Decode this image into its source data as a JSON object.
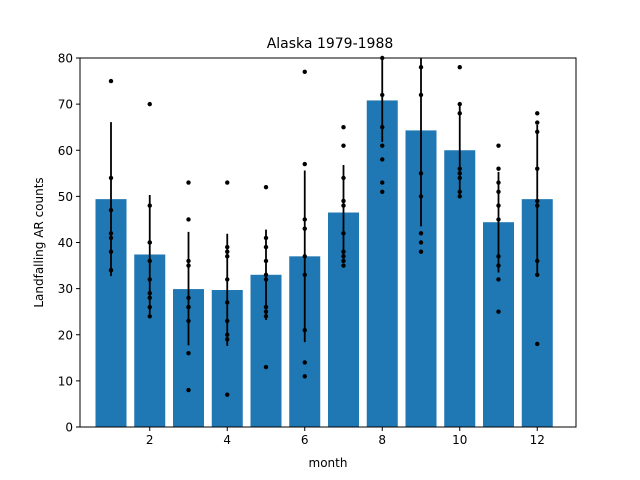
{
  "chart_data": {
    "type": "bar",
    "title": "Alaska 1979-1988",
    "xlabel": "month",
    "ylabel": "Landfalling AR counts",
    "xlim": [
      0.2,
      13.0
    ],
    "ylim": [
      0,
      80
    ],
    "xticks": [
      2,
      4,
      6,
      8,
      10,
      12
    ],
    "yticks": [
      0,
      10,
      20,
      30,
      40,
      50,
      60,
      70,
      80
    ],
    "bar_color": "#1f77b4",
    "categories": [
      1,
      2,
      3,
      4,
      5,
      6,
      7,
      8,
      9,
      10,
      11,
      12
    ],
    "values": [
      49.4,
      37.4,
      29.9,
      29.7,
      33.0,
      37.0,
      46.5,
      70.8,
      64.3,
      60.0,
      44.4,
      49.4
    ],
    "error": [
      [
        32.7,
        66.1
      ],
      [
        24.5,
        50.3
      ],
      [
        17.7,
        42.3
      ],
      [
        17.6,
        41.9
      ],
      [
        23.2,
        42.8
      ],
      [
        18.4,
        55.6
      ],
      [
        36.2,
        56.8
      ],
      [
        61.8,
        79.8
      ],
      [
        43.5,
        85.0
      ],
      [
        50.1,
        69.9
      ],
      [
        33.5,
        55.3
      ],
      [
        33.3,
        65.5
      ]
    ],
    "points": [
      [
        75,
        54,
        47,
        42,
        41,
        38,
        34,
        34
      ],
      [
        70,
        48,
        40,
        40,
        36,
        32,
        29,
        28,
        26,
        24
      ],
      [
        53,
        45,
        36,
        35,
        28,
        26,
        26,
        23,
        16,
        8
      ],
      [
        53,
        39,
        38,
        37,
        32,
        27,
        23,
        20,
        19,
        7
      ],
      [
        52,
        41,
        39,
        36,
        33,
        32,
        26,
        25,
        24,
        13
      ],
      [
        77,
        57,
        45,
        43,
        37,
        33,
        21,
        14,
        11
      ],
      [
        65,
        61,
        54,
        49,
        48,
        42,
        38,
        37,
        36,
        35
      ],
      [
        80,
        72,
        65,
        61,
        58,
        53,
        51
      ],
      [
        78,
        72,
        55,
        50,
        42,
        40,
        38
      ],
      [
        78,
        70,
        68,
        56,
        55,
        54,
        51,
        50
      ],
      [
        61,
        56,
        53,
        51,
        48,
        45,
        37,
        35,
        32,
        25
      ],
      [
        68,
        66,
        64,
        56,
        49,
        48,
        36,
        33,
        18
      ]
    ]
  }
}
